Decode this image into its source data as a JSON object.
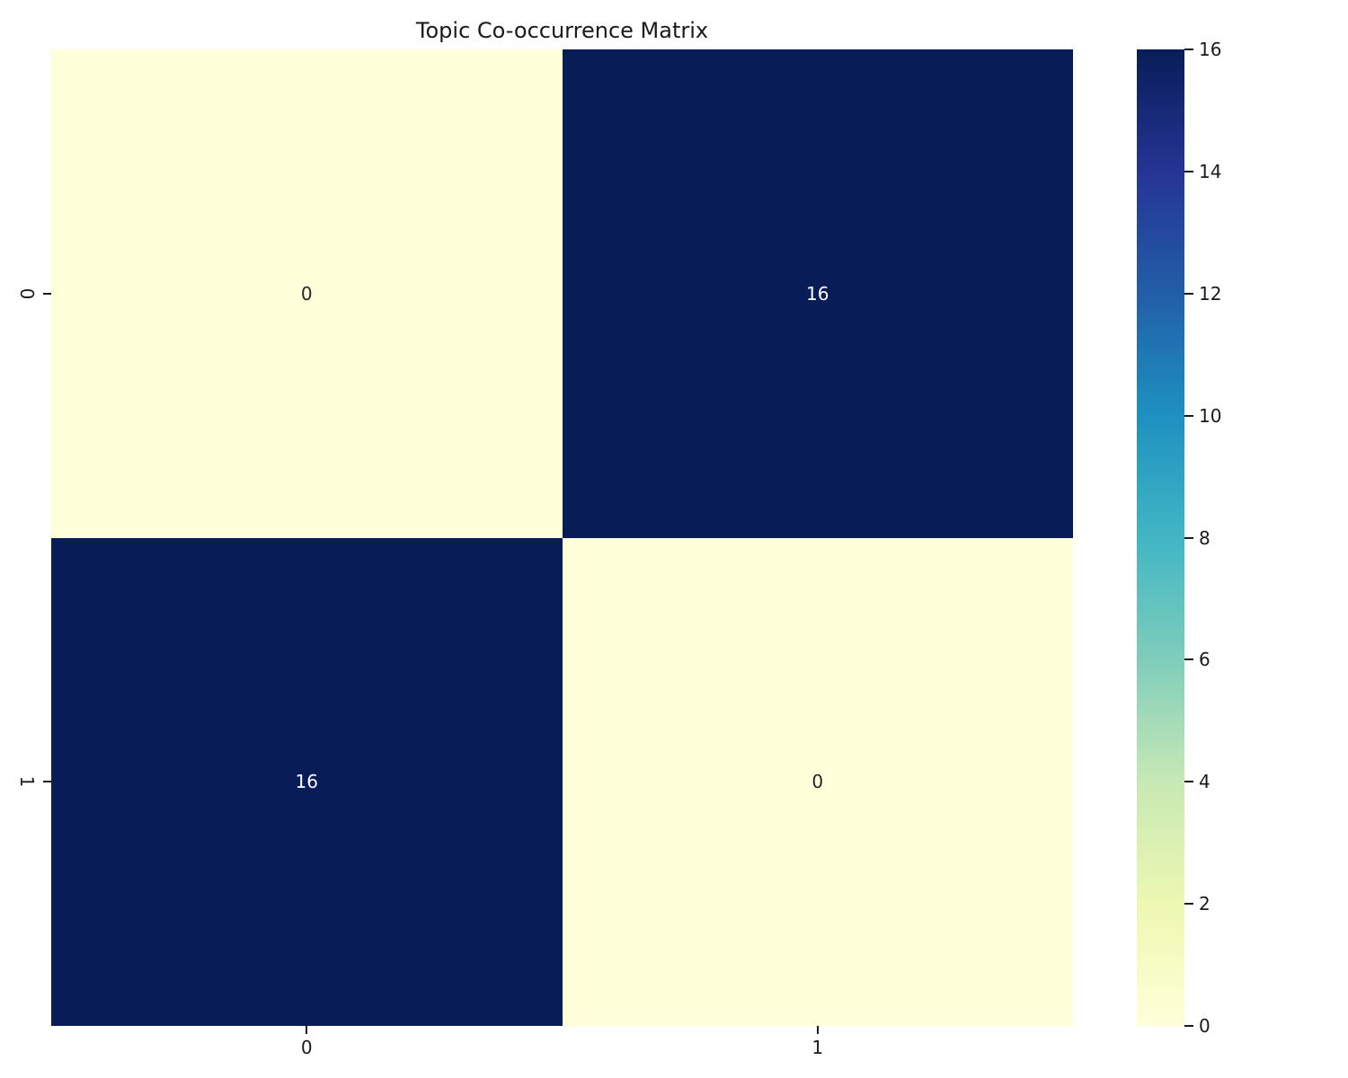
{
  "chart_data": {
    "type": "heatmap",
    "title": "Topic Co-occurrence Matrix",
    "x_labels": [
      "0",
      "1"
    ],
    "y_labels": [
      "0",
      "1"
    ],
    "matrix": [
      [
        0,
        16
      ],
      [
        16,
        0
      ]
    ],
    "vmin": 0,
    "vmax": 16,
    "colormap": "YlGnBu",
    "colormap_stops": [
      "#ffffd9",
      "#edf8b1",
      "#c7e9b4",
      "#7fcdbb",
      "#41b6c4",
      "#1d91c0",
      "#225ea8",
      "#253494",
      "#081d58"
    ],
    "colorbar_ticks": [
      0,
      2,
      4,
      6,
      8,
      10,
      12,
      14,
      16
    ],
    "annotation_text_dark": "#262626",
    "annotation_text_light": "#ffffff",
    "legend_position": "right",
    "grid": false
  }
}
